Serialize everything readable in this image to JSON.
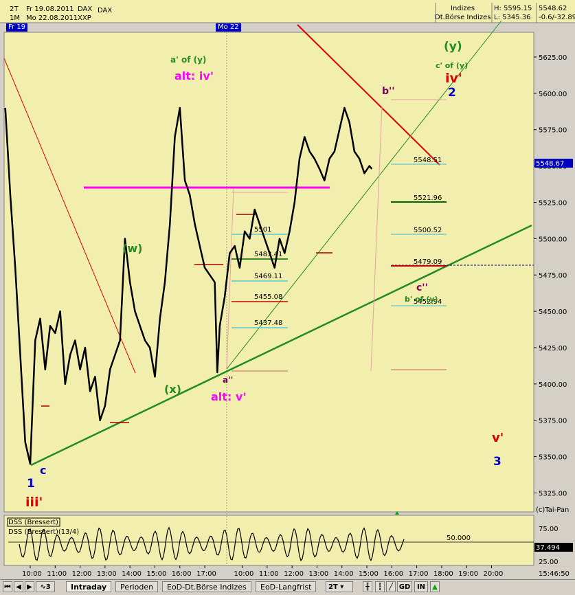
{
  "header": {
    "row1": {
      "period": "2T",
      "date": "Fr 19.08.2011",
      "symbol": "DAX",
      "name": "DAX"
    },
    "row2": {
      "period": "1M",
      "date": "Mo 22.08.2011",
      "code": "XXP"
    },
    "group": "Indizes",
    "exchange": "Dt.Börse Indizes",
    "high": "H: 5595.15",
    "low": "L: 5345.36",
    "last": "5548.62",
    "change": "-0.6/-32.89",
    "day_tag_1": "Fr 19",
    "day_tag_2": "Mo 22"
  },
  "colors": {
    "background": "#f2eeae",
    "price": "#000000",
    "magenta": "#ff00ff",
    "green": "#228b22",
    "red": "#dd0000",
    "blue": "#0000cc",
    "purple": "#800060"
  },
  "price_tag": "5548.67",
  "copyright": "(c)Tai-Pan",
  "indicator": {
    "label1": "DSS (Bressert)",
    "label2": "DSS (Bressert)(13/4)",
    "level_label": "50.000",
    "last_value": "37.494",
    "ticks": [
      "75.00",
      "50.00",
      "25.00"
    ]
  },
  "fib_labels": [
    "5548.51",
    "5521.96",
    "5500.52",
    "5479.09",
    "5452.94",
    "5501",
    "5483.41",
    "5469.11",
    "5455.08",
    "5437.48"
  ],
  "wave_labels": {
    "a_of_y": "a' of (y)",
    "alt_iv": "alt: iv'",
    "w": "(w)",
    "x": "(x)",
    "a2": "a''",
    "alt_v": "alt: v'",
    "b2": "b''",
    "y": "(y)",
    "c_of_y": "c' of (y)",
    "iv": "iv'",
    "two": "2",
    "c2": "c''",
    "b_of_y": "b' of (y)",
    "v": "v'",
    "three": "3",
    "one": "1",
    "c": "c",
    "iii": "iii'"
  },
  "tabs": [
    "Intraday",
    "Perioden",
    "EoD-Dt.Börse Indizes",
    "EoD-Langfrist"
  ],
  "toolbar": {
    "period": "2T",
    "gd": "GD",
    "in": "IN",
    "time_readout": "15:46:50"
  },
  "chart_data": {
    "type": "line",
    "title": "",
    "xlabel": "",
    "ylabel": "",
    "ylim": [
      5312,
      5642
    ],
    "x_ticks": [
      "10:00",
      "11:00",
      "12:00",
      "13:00",
      "14:00",
      "15:00",
      "16:00",
      "17:00",
      "10:00",
      "11:00",
      "12:00",
      "13:00",
      "14:00",
      "15:00",
      "16:00",
      "17:00",
      "18:00",
      "19:00",
      "20:00"
    ],
    "y_ticks": [
      5325,
      5350,
      5375,
      5400,
      5425,
      5450,
      5475,
      5500,
      5525,
      5550,
      5575,
      5600,
      5625
    ],
    "series": [
      {
        "x": [
          9.0,
          9.2,
          9.4,
          9.6,
          9.8,
          10.0,
          10.2,
          10.4,
          10.6,
          10.8,
          11.0,
          11.2,
          11.4,
          11.6,
          11.8,
          12.0,
          12.2,
          12.4,
          12.6,
          12.8,
          13.0,
          13.2,
          13.4,
          13.6,
          13.8,
          14.0,
          14.2,
          14.4,
          14.6,
          14.8,
          15.0,
          15.2,
          15.4,
          15.6,
          15.8,
          16.0,
          16.2,
          16.4,
          16.6,
          16.8,
          17.0,
          17.2,
          17.4,
          17.5,
          17.6,
          17.8,
          18.0,
          18.2,
          18.4,
          18.6,
          18.8,
          19.0,
          19.2,
          19.4,
          19.6,
          19.8,
          20.0,
          20.2,
          20.4,
          20.6,
          20.8,
          21.0,
          21.2,
          21.4,
          21.6,
          21.8,
          22.0,
          22.2,
          22.4,
          22.6,
          22.8,
          23.0,
          23.2,
          23.4,
          23.6,
          23.7
        ],
        "y": [
          5590,
          5530,
          5480,
          5420,
          5360,
          5345,
          5430,
          5445,
          5410,
          5440,
          5435,
          5450,
          5400,
          5420,
          5430,
          5410,
          5425,
          5395,
          5405,
          5375,
          5385,
          5410,
          5420,
          5430,
          5500,
          5470,
          5450,
          5440,
          5430,
          5425,
          5405,
          5445,
          5470,
          5510,
          5570,
          5590,
          5540,
          5530,
          5510,
          5495,
          5480,
          5475,
          5470,
          5408,
          5440,
          5460,
          5490,
          5495,
          5480,
          5505,
          5500,
          5520,
          5510,
          5500,
          5490,
          5480,
          5500,
          5490,
          5505,
          5525,
          5555,
          5570,
          5560,
          5555,
          5548,
          5540,
          5555,
          5560,
          5575,
          5590,
          5580,
          5560,
          5555,
          5545,
          5550,
          5548
        ]
      }
    ]
  }
}
